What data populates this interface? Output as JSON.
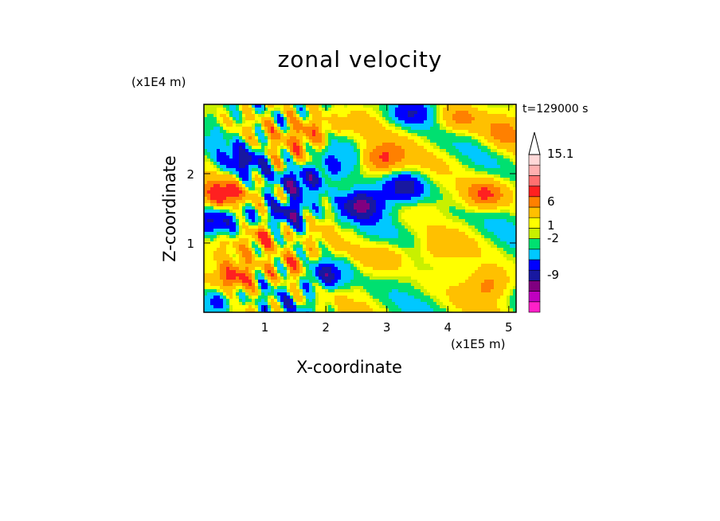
{
  "chart_data": {
    "type": "heatmap",
    "title": "zonal velocity",
    "xlabel": "X-coordinate",
    "ylabel": "Z-coordinate",
    "x_unit": "(x1E5 m)",
    "y_unit": "(x1E4 m)",
    "time_label": "t=129000 s",
    "xlim": [
      0,
      5.12
    ],
    "ylim": [
      0,
      3.0
    ],
    "x_ticks": [
      "1",
      "2",
      "3",
      "4",
      "5"
    ],
    "x_tick_values": [
      1,
      2,
      3,
      4,
      5
    ],
    "y_ticks": [
      "1",
      "2"
    ],
    "y_tick_values": [
      1,
      2
    ],
    "colorbar": {
      "levels_labeled": [
        "15.1",
        "6",
        "1",
        "-2",
        "-9"
      ],
      "bands": [
        "#ff20c8",
        "#c000c0",
        "#800080",
        "#1818a0",
        "#0000ff",
        "#00c8ff",
        "#00e070",
        "#c8f000",
        "#ffff00",
        "#ffc000",
        "#ff8000",
        "#ff2020",
        "#ff7070",
        "#ffb0b0",
        "#ffd8d8"
      ],
      "extend_max": true
    },
    "blobs": [
      {
        "x": 0.3,
        "z": 1.7,
        "v": 8
      },
      {
        "x": 0.1,
        "z": 1.3,
        "v": -6
      },
      {
        "x": 0.7,
        "z": 2.2,
        "v": -4
      },
      {
        "x": 1.0,
        "z": 1.1,
        "v": 6
      },
      {
        "x": 1.4,
        "z": 1.4,
        "v": -7
      },
      {
        "x": 1.6,
        "z": 1.9,
        "v": -6
      },
      {
        "x": 1.75,
        "z": 2.6,
        "v": 5
      },
      {
        "x": 1.5,
        "z": 0.7,
        "v": 4
      },
      {
        "x": 2.1,
        "z": 2.1,
        "v": -3
      },
      {
        "x": 2.9,
        "z": 2.2,
        "v": 6
      },
      {
        "x": 3.3,
        "z": 1.8,
        "v": -6
      },
      {
        "x": 2.6,
        "z": 1.55,
        "v": -7
      },
      {
        "x": 3.0,
        "z": 0.8,
        "v": 3
      },
      {
        "x": 3.8,
        "z": 0.9,
        "v": 2
      },
      {
        "x": 4.6,
        "z": 1.7,
        "v": 6
      },
      {
        "x": 3.9,
        "z": 1.3,
        "v": -1
      },
      {
        "x": 4.2,
        "z": 2.8,
        "v": 4
      },
      {
        "x": 3.4,
        "z": 2.9,
        "v": -5
      },
      {
        "x": 4.9,
        "z": 2.6,
        "v": 3
      },
      {
        "x": 4.7,
        "z": 0.4,
        "v": 4
      },
      {
        "x": 0.2,
        "z": 0.15,
        "v": -5
      },
      {
        "x": 0.5,
        "z": 0.5,
        "v": 6
      },
      {
        "x": 2.0,
        "z": 0.55,
        "v": -6
      },
      {
        "x": 4.1,
        "z": 2.2,
        "v": 0.5
      },
      {
        "x": 2.5,
        "z": 2.75,
        "v": 2
      }
    ]
  }
}
